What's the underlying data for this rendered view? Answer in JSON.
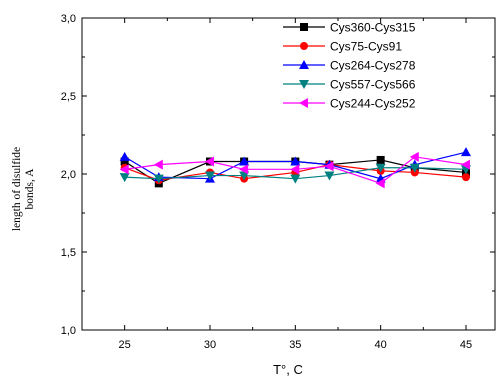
{
  "chart_data": {
    "type": "line",
    "title": "",
    "xlabel": "T°, C",
    "ylabel": "length of disulfide bonds, A",
    "ylabel_lines": [
      "length of disulfide",
      "bonds, A"
    ],
    "x_ticks": [
      "25",
      "30",
      "35",
      "40",
      "45"
    ],
    "y_ticks": [
      "1,0",
      "1,5",
      "2,0",
      "2,5",
      "3,0"
    ],
    "xlim": [
      22.5,
      46.7
    ],
    "ylim": [
      1.0,
      3.0
    ],
    "grid": false,
    "legend_position": "top-right",
    "series": [
      {
        "name": "Cys360-Cys315",
        "color": "#000000",
        "marker": "square",
        "x": [
          25,
          27,
          30,
          32,
          35,
          37,
          40,
          42,
          45
        ],
        "y": [
          2.08,
          1.94,
          2.08,
          2.08,
          2.08,
          2.06,
          2.09,
          2.04,
          2.01
        ]
      },
      {
        "name": "Cys75-Cys91",
        "color": "#ff0000",
        "marker": "circle",
        "x": [
          25,
          27,
          30,
          32,
          35,
          37,
          40,
          42,
          45
        ],
        "y": [
          2.04,
          1.96,
          2.01,
          1.97,
          2.01,
          2.06,
          2.02,
          2.01,
          1.98
        ]
      },
      {
        "name": "Cys264-Cys278",
        "color": "#0000ff",
        "marker": "triangle-up",
        "x": [
          25,
          27,
          30,
          32,
          35,
          37,
          40,
          42,
          45
        ],
        "y": [
          2.11,
          1.98,
          1.97,
          2.08,
          2.08,
          2.06,
          1.97,
          2.06,
          2.14
        ]
      },
      {
        "name": "Cys557-Cys566",
        "color": "#008080",
        "marker": "triangle-down",
        "x": [
          25,
          27,
          30,
          32,
          35,
          37,
          40,
          42,
          45
        ],
        "y": [
          1.98,
          1.97,
          1.99,
          1.99,
          1.97,
          1.99,
          2.04,
          2.04,
          2.03
        ]
      },
      {
        "name": "Cys244-Cys252",
        "color": "#ff00ff",
        "marker": "triangle-left",
        "x": [
          25,
          27,
          30,
          32,
          35,
          37,
          40,
          42,
          45
        ],
        "y": [
          2.03,
          2.06,
          2.08,
          2.03,
          2.03,
          2.05,
          1.94,
          2.11,
          2.06
        ]
      }
    ]
  }
}
